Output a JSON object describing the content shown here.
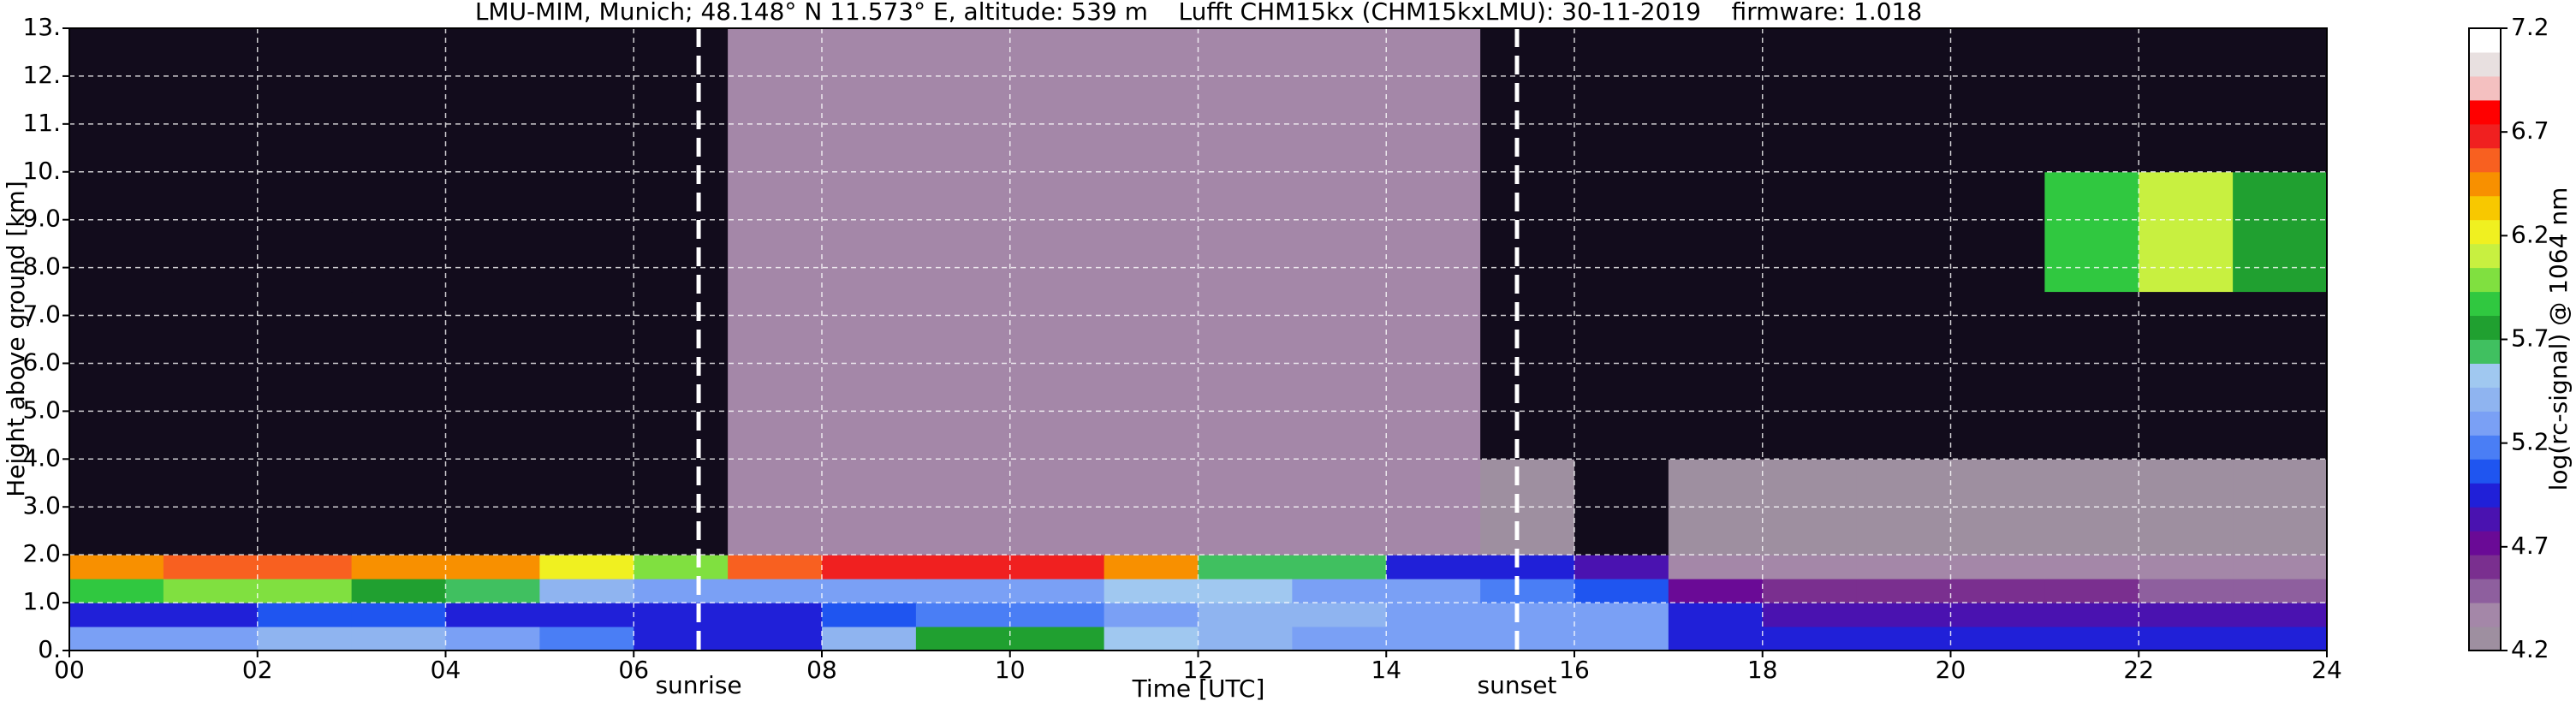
{
  "chart_data": {
    "type": "heatmap",
    "title": "LMU-MIM, Munich; 48.148° N 11.573° E, altitude: 539 m    Lufft CHM15kx (CHM15kxLMU): 30-11-2019    firmware: 1.018",
    "xlabel": "Time [UTC]",
    "ylabel": "Height above ground [km]",
    "colorbar_label": "log(rc-signal) @ 1064 nm",
    "xbins": [
      0,
      1,
      2,
      3,
      4,
      5,
      6,
      7,
      8,
      9,
      10,
      11,
      12,
      13,
      14,
      15,
      16,
      17,
      18,
      19,
      20,
      21,
      22,
      23,
      24
    ],
    "ybins": [
      0,
      0.5,
      1,
      1.5,
      2,
      4,
      7.5,
      10,
      13
    ],
    "z": [
      [
        5.3,
        5.3,
        5.4,
        5.4,
        5.3,
        5.2,
        5.0,
        5.0,
        5.4,
        5.7,
        5.8,
        5.5,
        5.4,
        5.3,
        5.3,
        5.3,
        5.3,
        5.0,
        4.9,
        4.9,
        4.9,
        4.9,
        4.9,
        4.9
      ],
      [
        5.0,
        5.0,
        5.1,
        5.1,
        5.0,
        5.0,
        5.0,
        5.0,
        5.1,
        5.2,
        5.2,
        5.3,
        5.4,
        5.4,
        5.3,
        5.3,
        5.3,
        5.0,
        4.8,
        4.8,
        4.8,
        4.8,
        4.8,
        4.8
      ],
      [
        5.9,
        6.0,
        6.0,
        5.8,
        5.6,
        5.4,
        5.3,
        5.3,
        5.3,
        5.3,
        5.3,
        5.5,
        5.5,
        5.3,
        5.3,
        5.2,
        5.1,
        4.7,
        4.6,
        4.6,
        4.6,
        4.6,
        4.5,
        4.5
      ],
      [
        6.5,
        6.6,
        6.6,
        6.5,
        6.4,
        6.2,
        6.0,
        6.6,
        6.7,
        6.7,
        6.7,
        6.4,
        5.6,
        5.6,
        5.0,
        5.0,
        4.8,
        4.4,
        4.4,
        4.4,
        4.4,
        4.4,
        4.4,
        4.4
      ],
      [
        4.0,
        4.0,
        4.0,
        4.0,
        4.0,
        4.0,
        4.1,
        4.4,
        4.4,
        4.4,
        4.4,
        4.4,
        4.4,
        4.4,
        4.4,
        4.2,
        4.0,
        4.3,
        4.3,
        4.3,
        4.3,
        4.3,
        4.3,
        4.3
      ],
      [
        4.0,
        4.0,
        4.0,
        4.0,
        4.0,
        4.0,
        4.1,
        4.4,
        4.4,
        4.4,
        4.4,
        4.4,
        4.4,
        4.4,
        4.4,
        4.1,
        4.0,
        4.0,
        4.0,
        4.0,
        4.0,
        4.0,
        4.0,
        4.0
      ],
      [
        4.0,
        4.0,
        4.0,
        4.0,
        4.0,
        4.0,
        4.1,
        4.4,
        4.4,
        4.4,
        4.4,
        4.4,
        4.4,
        4.4,
        4.4,
        4.1,
        4.0,
        4.0,
        4.0,
        4.0,
        4.0,
        5.9,
        6.1,
        5.8
      ],
      [
        4.0,
        4.0,
        4.0,
        4.0,
        4.0,
        4.0,
        4.1,
        4.4,
        4.4,
        4.4,
        4.4,
        4.4,
        4.4,
        4.4,
        4.4,
        4.1,
        4.0,
        4.0,
        4.0,
        4.0,
        4.0,
        4.0,
        4.0,
        4.0
      ]
    ],
    "xlim": [
      0,
      24
    ],
    "ylim": [
      0,
      13
    ],
    "zlim": [
      4.2,
      7.2
    ],
    "xticks": [
      {
        "value": 0,
        "label": "00"
      },
      {
        "value": 2,
        "label": "02"
      },
      {
        "value": 4,
        "label": "04"
      },
      {
        "value": 6,
        "label": "06"
      },
      {
        "value": 8,
        "label": "08"
      },
      {
        "value": 10,
        "label": "10"
      },
      {
        "value": 12,
        "label": "12"
      },
      {
        "value": 14,
        "label": "14"
      },
      {
        "value": 16,
        "label": "16"
      },
      {
        "value": 18,
        "label": "18"
      },
      {
        "value": 20,
        "label": "20"
      },
      {
        "value": 22,
        "label": "22"
      },
      {
        "value": 24,
        "label": "24"
      }
    ],
    "yticks": [
      {
        "value": 0,
        "label": "0."
      },
      {
        "value": 1,
        "label": "1.0"
      },
      {
        "value": 2,
        "label": "2.0"
      },
      {
        "value": 3,
        "label": "3.0"
      },
      {
        "value": 4,
        "label": "4.0"
      },
      {
        "value": 5,
        "label": "5.0"
      },
      {
        "value": 6,
        "label": "6.0"
      },
      {
        "value": 7,
        "label": "7.0"
      },
      {
        "value": 8,
        "label": "8.0"
      },
      {
        "value": 9,
        "label": "9.0"
      },
      {
        "value": 10,
        "label": "10."
      },
      {
        "value": 11,
        "label": "11."
      },
      {
        "value": 12,
        "label": "12."
      },
      {
        "value": 13,
        "label": "13."
      }
    ],
    "zticks": [
      4.2,
      4.7,
      5.2,
      5.7,
      6.2,
      6.7,
      7.2
    ],
    "colors": [
      "#9e8fa0",
      "#a487a8",
      "#8e5f9e",
      "#7a2f8f",
      "#6a0a96",
      "#4a12b0",
      "#2020d8",
      "#1f55f0",
      "#4a7ef5",
      "#7aa0f5",
      "#8fb4f0",
      "#a0c8f0",
      "#40c060",
      "#20a030",
      "#30c840",
      "#80e040",
      "#c8f040",
      "#f0f020",
      "#f8c800",
      "#f89000",
      "#f86020",
      "#f02020",
      "#ff0000",
      "#f4c0c0",
      "#e8e0e0",
      "#ffffff"
    ],
    "under_color": "#120c1c",
    "grid": true,
    "grid_color": "#ffffff",
    "annotations": [
      {
        "x": 6.69,
        "label": "sunrise"
      },
      {
        "x": 15.39,
        "label": "sunset"
      }
    ]
  }
}
